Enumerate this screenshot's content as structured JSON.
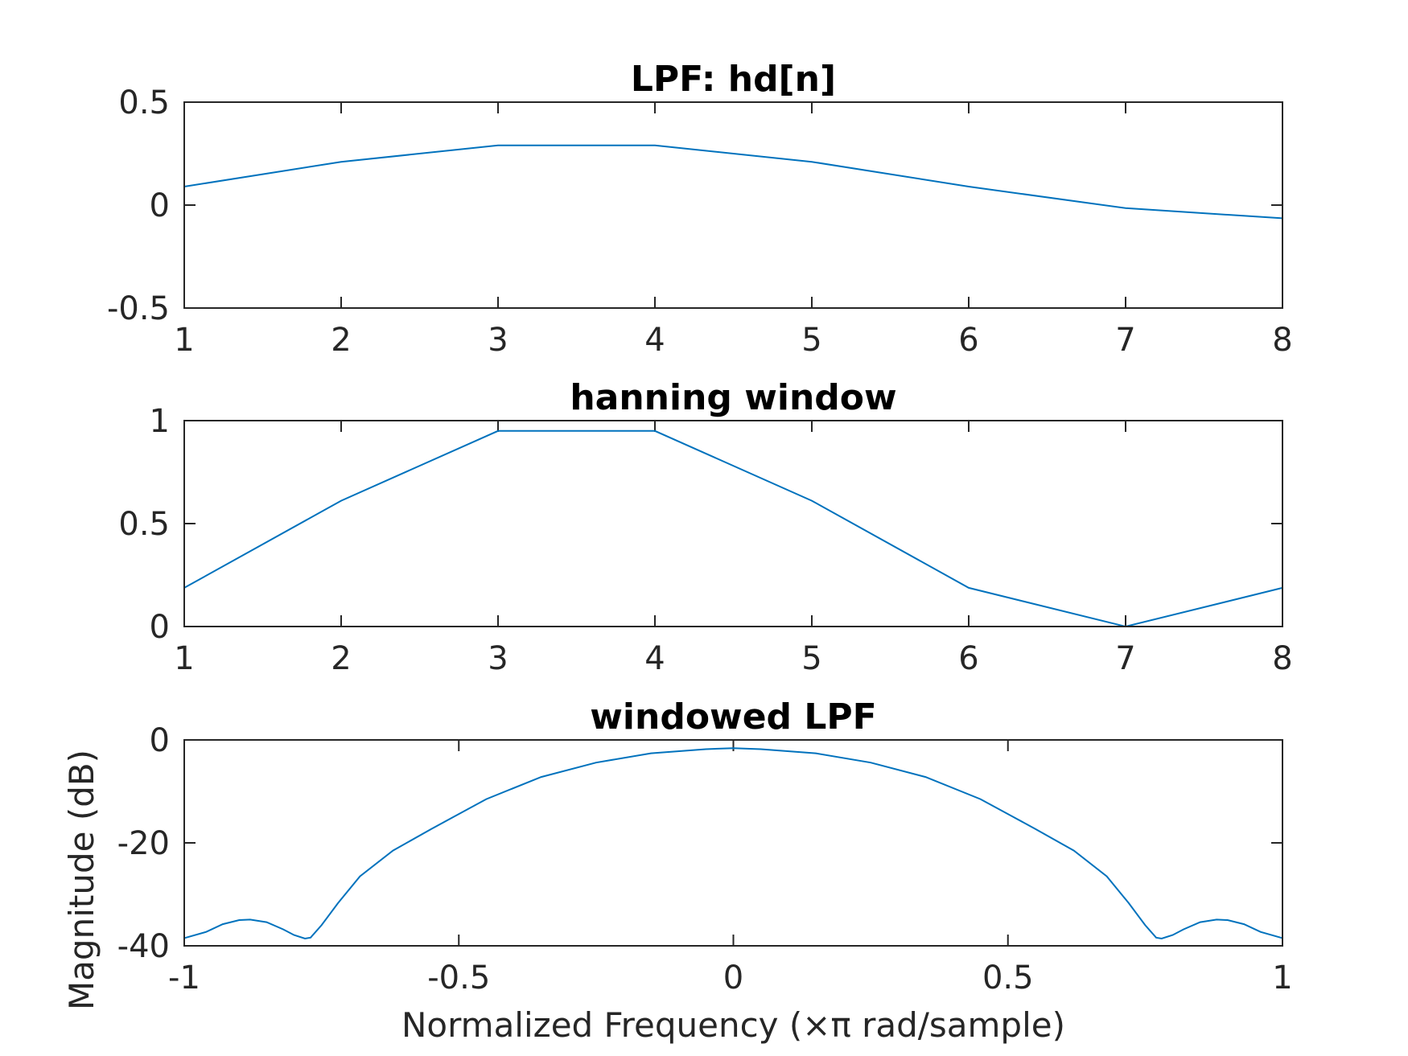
{
  "chart_data": [
    {
      "type": "line",
      "title": "LPF: hd[n]",
      "xlabel": "",
      "ylabel": "",
      "xlim": [
        1,
        8
      ],
      "ylim": [
        -0.5,
        0.5
      ],
      "xticks": [
        1,
        2,
        3,
        4,
        5,
        6,
        7,
        8
      ],
      "xtick_labels": [
        "1",
        "2",
        "3",
        "4",
        "5",
        "6",
        "7",
        "8"
      ],
      "yticks": [
        -0.5,
        0,
        0.5
      ],
      "ytick_labels": [
        "-0.5",
        "0",
        "0.5"
      ],
      "grid": false,
      "color": "#0072BD",
      "series": [
        {
          "x": [
            1,
            2,
            3,
            4,
            5,
            6,
            7,
            8
          ],
          "values": [
            0.09,
            0.21,
            0.29,
            0.29,
            0.21,
            0.09,
            -0.015,
            -0.064
          ]
        }
      ]
    },
    {
      "type": "line",
      "title": "hanning window",
      "xlabel": "",
      "ylabel": "",
      "xlim": [
        1,
        8
      ],
      "ylim": [
        0,
        1
      ],
      "xticks": [
        1,
        2,
        3,
        4,
        5,
        6,
        7,
        8
      ],
      "xtick_labels": [
        "1",
        "2",
        "3",
        "4",
        "5",
        "6",
        "7",
        "8"
      ],
      "yticks": [
        0,
        0.5,
        1
      ],
      "ytick_labels": [
        "0",
        "0.5",
        "1"
      ],
      "grid": false,
      "color": "#0072BD",
      "series": [
        {
          "x": [
            1,
            2,
            3,
            4,
            5,
            6,
            7,
            8
          ],
          "values": [
            0.188,
            0.611,
            0.95,
            0.95,
            0.611,
            0.188,
            0.0,
            0.188
          ]
        }
      ]
    },
    {
      "type": "line",
      "title": "windowed LPF",
      "xlabel": "Normalized Frequency (×π rad/sample)",
      "ylabel": "Magnitude (dB)",
      "xlim": [
        -1,
        1
      ],
      "ylim": [
        -40,
        0
      ],
      "xticks": [
        -1,
        -0.5,
        0,
        0.5,
        1
      ],
      "xtick_labels": [
        "-1",
        "-0.5",
        "0",
        "0.5",
        "1"
      ],
      "yticks": [
        -40,
        -20,
        0
      ],
      "ytick_labels": [
        "-40",
        "-20",
        "0"
      ],
      "grid": false,
      "color": "#0072BD",
      "series": [
        {
          "x": [
            -1,
            -0.96,
            -0.93,
            -0.9,
            -0.88,
            -0.85,
            -0.82,
            -0.8,
            -0.78,
            -0.77,
            -0.75,
            -0.72,
            -0.68,
            -0.62,
            -0.55,
            -0.45,
            -0.35,
            -0.25,
            -0.15,
            -0.05,
            0,
            0.05,
            0.15,
            0.25,
            0.35,
            0.45,
            0.55,
            0.62,
            0.68,
            0.72,
            0.75,
            0.77,
            0.78,
            0.8,
            0.82,
            0.85,
            0.88,
            0.9,
            0.93,
            0.96,
            1
          ],
          "values": [
            -38.5,
            -37.3,
            -35.8,
            -35.0,
            -34.9,
            -35.4,
            -36.8,
            -37.9,
            -38.6,
            -38.4,
            -36.0,
            -31.7,
            -26.5,
            -21.5,
            -17.3,
            -11.5,
            -7.2,
            -4.4,
            -2.6,
            -1.8,
            -1.6,
            -1.8,
            -2.6,
            -4.4,
            -7.2,
            -11.5,
            -17.3,
            -21.5,
            -26.5,
            -31.7,
            -36.0,
            -38.4,
            -38.6,
            -37.9,
            -36.8,
            -35.4,
            -34.9,
            -35.0,
            -35.8,
            -37.3,
            -38.5
          ]
        }
      ]
    }
  ]
}
